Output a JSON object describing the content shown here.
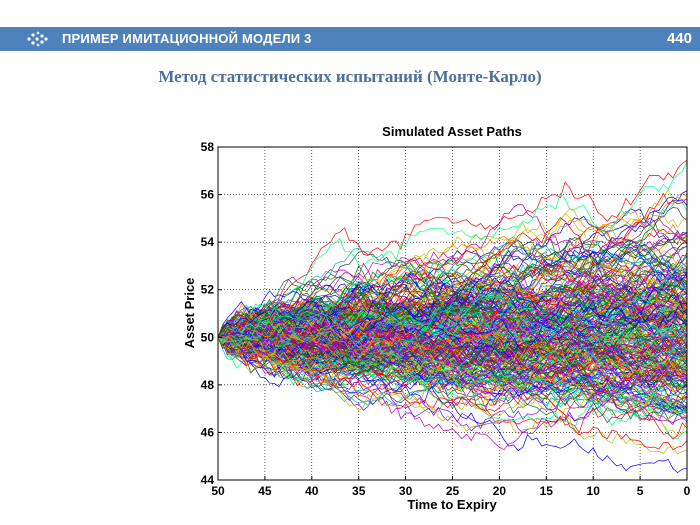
{
  "header": {
    "title": "ПРИМЕР ИМИТАЦИОННОЙ МОДЕЛИ 3",
    "page_number": "440",
    "icon": "dots-arrow-icon"
  },
  "subtitle": "Метод статистических испытаний (Монте-Карло)",
  "colors": {
    "header_bg": "#4f81bd",
    "subtitle": "#4f6f9c",
    "path_palette": [
      "#0000ff",
      "#008000",
      "#ff0000",
      "#00bfbf",
      "#bf00bf",
      "#bfbf00",
      "#3f3f3f",
      "#ff7f00",
      "#7f00ff",
      "#00ff7f"
    ]
  },
  "chart_data": {
    "type": "line",
    "title": "Simulated Asset Paths",
    "xlabel": "Time to Expiry",
    "ylabel": "Asset Price",
    "xlim": [
      50,
      0
    ],
    "ylim": [
      44,
      58
    ],
    "xticks": [
      "50",
      "45",
      "40",
      "35",
      "30",
      "25",
      "20",
      "15",
      "10",
      "5",
      "0"
    ],
    "yticks": [
      "44",
      "46",
      "48",
      "50",
      "52",
      "54",
      "56",
      "58"
    ],
    "grid": true,
    "start_price": 50,
    "approx_final_range": [
      44.5,
      56.5
    ],
    "series_count": 300
  }
}
